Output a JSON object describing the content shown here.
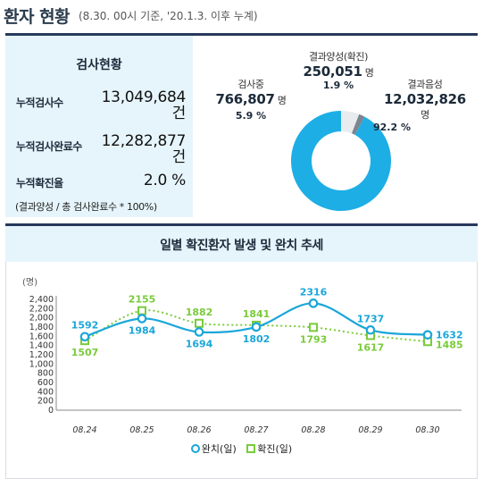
{
  "header": {
    "title": "환자 현황",
    "subtitle": "(8.30. 00시 기준, '20.1.3. 이후 누계)"
  },
  "summary": {
    "title": "검사현황",
    "rows": [
      {
        "label": "누적검사수",
        "value": "13,049,684",
        "unit": "건"
      },
      {
        "label": "누적검사완료수",
        "value": "12,282,877",
        "unit": "건"
      },
      {
        "label": "누적확진율",
        "value": "2.0 %"
      }
    ],
    "note": "(결과양성 / 총 검사완료수 * 100%)"
  },
  "donut": {
    "testing": {
      "name": "검사중",
      "value": "766,807",
      "unit": "명",
      "pct": "5.9 %",
      "fraction": 0.059,
      "color": "#e8ecef"
    },
    "positive": {
      "name": "결과양성(확진)",
      "value": "250,051",
      "unit": "명",
      "pct": "1.9 %",
      "fraction": 0.019,
      "color": "#7b8690"
    },
    "negative": {
      "name": "결과음성",
      "value": "12,032,826",
      "unit": "명",
      "pct": "92.2 %",
      "fraction": 0.922,
      "color": "#1eaee6"
    }
  },
  "chart": {
    "title": "일별 확진환자 발생 및 완치 추세",
    "legend": {
      "recovered": "완치(일)",
      "confirmed": "확진(일)"
    }
  },
  "chart_data": {
    "type": "line",
    "title": "일별 확진환자 발생 및 완치 추세",
    "ylabel": "(명)",
    "xlabel": "",
    "ylim": [
      0,
      2400
    ],
    "yticks": [
      "2,400",
      "2,200",
      "2,000",
      "1,800",
      "1,600",
      "1,400",
      "1,200",
      "1,000",
      "800",
      "600",
      "400",
      "200",
      "0"
    ],
    "ytick_values": [
      2400,
      2200,
      2000,
      1800,
      1600,
      1400,
      1200,
      1000,
      800,
      600,
      400,
      200,
      0
    ],
    "categories": [
      "08.24",
      "08.25",
      "08.26",
      "08.27",
      "08.28",
      "08.29",
      "08.30"
    ],
    "series": [
      {
        "name": "완치(일)",
        "values": [
          1592,
          1984,
          1694,
          1802,
          2316,
          1737,
          1632
        ],
        "color": "#1aa6d9",
        "style": "solid-curve",
        "marker": "circle"
      },
      {
        "name": "확진(일)",
        "values": [
          1507,
          2155,
          1882,
          1841,
          1793,
          1617,
          1485
        ],
        "color": "#7acb3b",
        "style": "dotted",
        "marker": "square"
      }
    ],
    "grid": false,
    "legend_position": "bottom"
  }
}
